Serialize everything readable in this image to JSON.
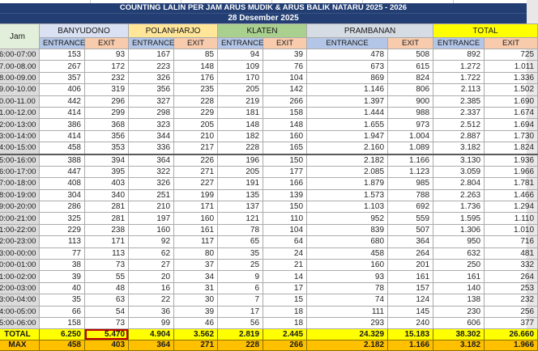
{
  "title": "COUNTING LALIN PER JAM ARUS MUDIK & ARUS BALIK NATARU 2025 - 2026",
  "date": "28 Desember 2025",
  "colors": {
    "banner": "#223E73",
    "banyudono": "#D9E1F2",
    "polanharjo": "#FFE699",
    "klaten": "#A9D08E",
    "prambanan": "#D6DCE4",
    "total_group": "#FFFF00",
    "entrance_header": "#B4C6E7",
    "exit_header": "#F8CBAD",
    "jam_header": "#E2EFDA",
    "total_row": "#FFFF00",
    "max_row": "#FFC000",
    "highlight_border": "#C00000"
  },
  "table": {
    "jam_header": "Jam",
    "groups": [
      "BANYUDONO",
      "POLANHARJO",
      "KLATEN",
      "PRAMBANAN",
      "TOTAL"
    ],
    "sub_headers": [
      "ENTRANCE",
      "EXIT"
    ],
    "rows": [
      {
        "jam": "6:00-07:00",
        "values": [
          "153",
          "93",
          "167",
          "85",
          "94",
          "39",
          "478",
          "508",
          "892",
          "725"
        ]
      },
      {
        "jam": "7.00-08.00",
        "values": [
          "267",
          "172",
          "223",
          "148",
          "109",
          "76",
          "673",
          "615",
          "1.272",
          "1.011"
        ]
      },
      {
        "jam": "8.00-09.00",
        "values": [
          "357",
          "232",
          "326",
          "176",
          "170",
          "104",
          "869",
          "824",
          "1.722",
          "1.336"
        ]
      },
      {
        "jam": "9.00-10.00",
        "values": [
          "406",
          "319",
          "356",
          "235",
          "205",
          "142",
          "1.146",
          "806",
          "2.113",
          "1.502"
        ]
      },
      {
        "jam": "0.00-11.00",
        "values": [
          "442",
          "296",
          "327",
          "228",
          "219",
          "266",
          "1.397",
          "900",
          "2.385",
          "1.690"
        ]
      },
      {
        "jam": "1.00-12.00",
        "values": [
          "414",
          "299",
          "298",
          "229",
          "181",
          "158",
          "1.444",
          "988",
          "2.337",
          "1.674"
        ]
      },
      {
        "jam": "2:00-13:00",
        "values": [
          "386",
          "368",
          "323",
          "205",
          "148",
          "148",
          "1.655",
          "973",
          "2.512",
          "1.694"
        ]
      },
      {
        "jam": "3:00-14:00",
        "values": [
          "414",
          "356",
          "344",
          "210",
          "182",
          "160",
          "1.947",
          "1.004",
          "2.887",
          "1.730"
        ]
      },
      {
        "jam": "4:00-15:00",
        "values": [
          "458",
          "353",
          "336",
          "217",
          "228",
          "165",
          "2.160",
          "1.089",
          "3.182",
          "1.824"
        ]
      },
      {
        "jam": "5:00-16:00",
        "values": [
          "388",
          "394",
          "364",
          "226",
          "196",
          "150",
          "2.182",
          "1.166",
          "3.130",
          "1.936"
        ]
      },
      {
        "jam": "6:00-17:00",
        "values": [
          "447",
          "395",
          "322",
          "271",
          "205",
          "177",
          "2.085",
          "1.123",
          "3.059",
          "1.966"
        ]
      },
      {
        "jam": "7:00-18:00",
        "values": [
          "408",
          "403",
          "326",
          "227",
          "191",
          "166",
          "1.879",
          "985",
          "2.804",
          "1.781"
        ]
      },
      {
        "jam": "8:00-19:00",
        "values": [
          "304",
          "340",
          "251",
          "199",
          "135",
          "139",
          "1.573",
          "788",
          "2.263",
          "1.466"
        ]
      },
      {
        "jam": "9:00-20:00",
        "values": [
          "286",
          "281",
          "210",
          "171",
          "137",
          "150",
          "1.103",
          "692",
          "1.736",
          "1.294"
        ]
      },
      {
        "jam": "0:00-21:00",
        "values": [
          "325",
          "281",
          "197",
          "160",
          "121",
          "110",
          "952",
          "559",
          "1.595",
          "1.110"
        ]
      },
      {
        "jam": "1:00-22:00",
        "values": [
          "229",
          "238",
          "160",
          "161",
          "78",
          "104",
          "839",
          "507",
          "1.306",
          "1.010"
        ]
      },
      {
        "jam": "2:00-23:00",
        "values": [
          "113",
          "171",
          "92",
          "117",
          "65",
          "64",
          "680",
          "364",
          "950",
          "716"
        ]
      },
      {
        "jam": "3:00-00:00",
        "values": [
          "77",
          "113",
          "62",
          "80",
          "35",
          "24",
          "458",
          "264",
          "632",
          "481"
        ]
      },
      {
        "jam": "0:00-01:00",
        "values": [
          "38",
          "73",
          "27",
          "37",
          "25",
          "21",
          "160",
          "201",
          "250",
          "332"
        ]
      },
      {
        "jam": "1:00-02:00",
        "values": [
          "39",
          "55",
          "20",
          "34",
          "9",
          "14",
          "93",
          "161",
          "161",
          "264"
        ]
      },
      {
        "jam": "2:00-03:00",
        "values": [
          "40",
          "48",
          "16",
          "31",
          "6",
          "17",
          "78",
          "157",
          "140",
          "253"
        ]
      },
      {
        "jam": "3:00-04:00",
        "values": [
          "35",
          "63",
          "22",
          "30",
          "7",
          "15",
          "74",
          "124",
          "138",
          "232"
        ]
      },
      {
        "jam": "4:00-05:00",
        "values": [
          "66",
          "54",
          "36",
          "39",
          "17",
          "18",
          "111",
          "145",
          "230",
          "256"
        ]
      },
      {
        "jam": "5:00-06:00",
        "values": [
          "158",
          "73",
          "99",
          "46",
          "56",
          "18",
          "293",
          "240",
          "606",
          "377"
        ]
      }
    ],
    "total_row": {
      "label": "TOTAL",
      "values": [
        "6.250",
        "5.470",
        "4.904",
        "3.562",
        "2.819",
        "2.445",
        "24.329",
        "15.183",
        "38.302",
        "26.660"
      ],
      "highlighted_value_index": 1
    },
    "max_row": {
      "label": "MAX",
      "values": [
        "458",
        "403",
        "364",
        "271",
        "228",
        "266",
        "2.182",
        "1.166",
        "3.182",
        "1.966"
      ]
    }
  }
}
